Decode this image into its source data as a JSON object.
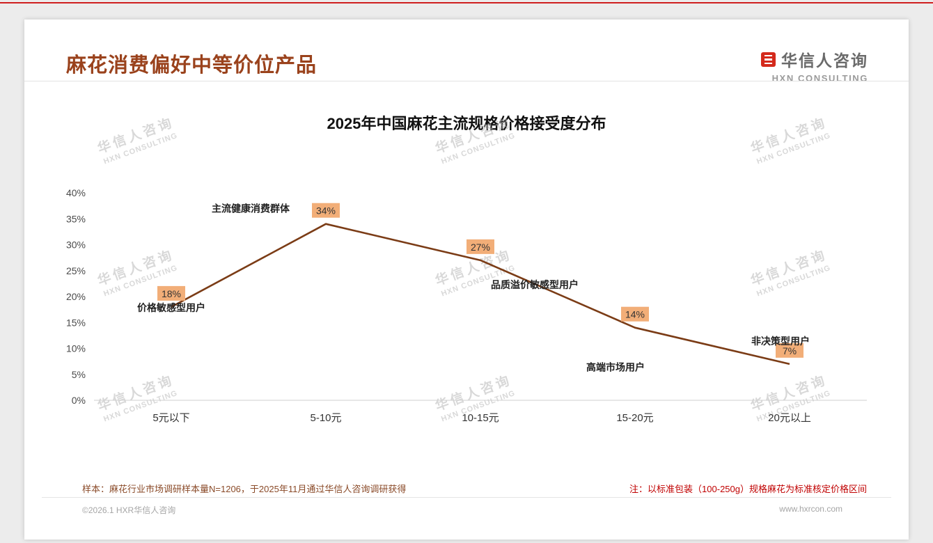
{
  "page": {
    "title": "麻花消费偏好中等价位产品",
    "brand": {
      "name": "华信人咨询",
      "subtitle": "HXN CONSULTING"
    },
    "watermark": {
      "line1": "华信人咨询",
      "line2": "HXN CONSULTING"
    },
    "notes": {
      "sample": "样本：麻花行业市场调研样本量N=1206，于2025年11月通过华信人咨询调研获得",
      "standard": "注：以标准包装（100-250g）规格麻花为标准核定价格区间"
    },
    "footer": {
      "copyright": "©2026.1 HXR华信人咨询",
      "website": "www.hxrcon.com"
    },
    "colors": {
      "accent_red": "#cf1f1f",
      "title_brown": "#9a421c",
      "note_red": "#c00000",
      "note_brown": "#8a4a28"
    }
  },
  "chart_data": {
    "type": "line",
    "title": "2025年中国麻花主流规格价格接受度分布",
    "categories": [
      "5元以下",
      "5-10元",
      "10-15元",
      "15-20元",
      "20元以上"
    ],
    "values": [
      18,
      34,
      27,
      14,
      7
    ],
    "value_labels": [
      "18%",
      "34%",
      "27%",
      "14%",
      "7%"
    ],
    "point_annotations": [
      "价格敏感型用户",
      "主流健康消费群体",
      "品质溢价敏感型用户",
      "高端市场用户",
      "非决策型用户"
    ],
    "xlabel": "",
    "ylabel": "",
    "ylim": [
      0,
      40
    ],
    "ytick_step": 5,
    "ytick_labels": [
      "0%",
      "5%",
      "10%",
      "15%",
      "20%",
      "25%",
      "30%",
      "35%",
      "40%"
    ],
    "grid": false,
    "legend": false,
    "line_color": "#7b3c16",
    "label_bg": "#f2ae78",
    "label_text_color": "#333333",
    "axis_line_color": "#cfcfcf"
  }
}
